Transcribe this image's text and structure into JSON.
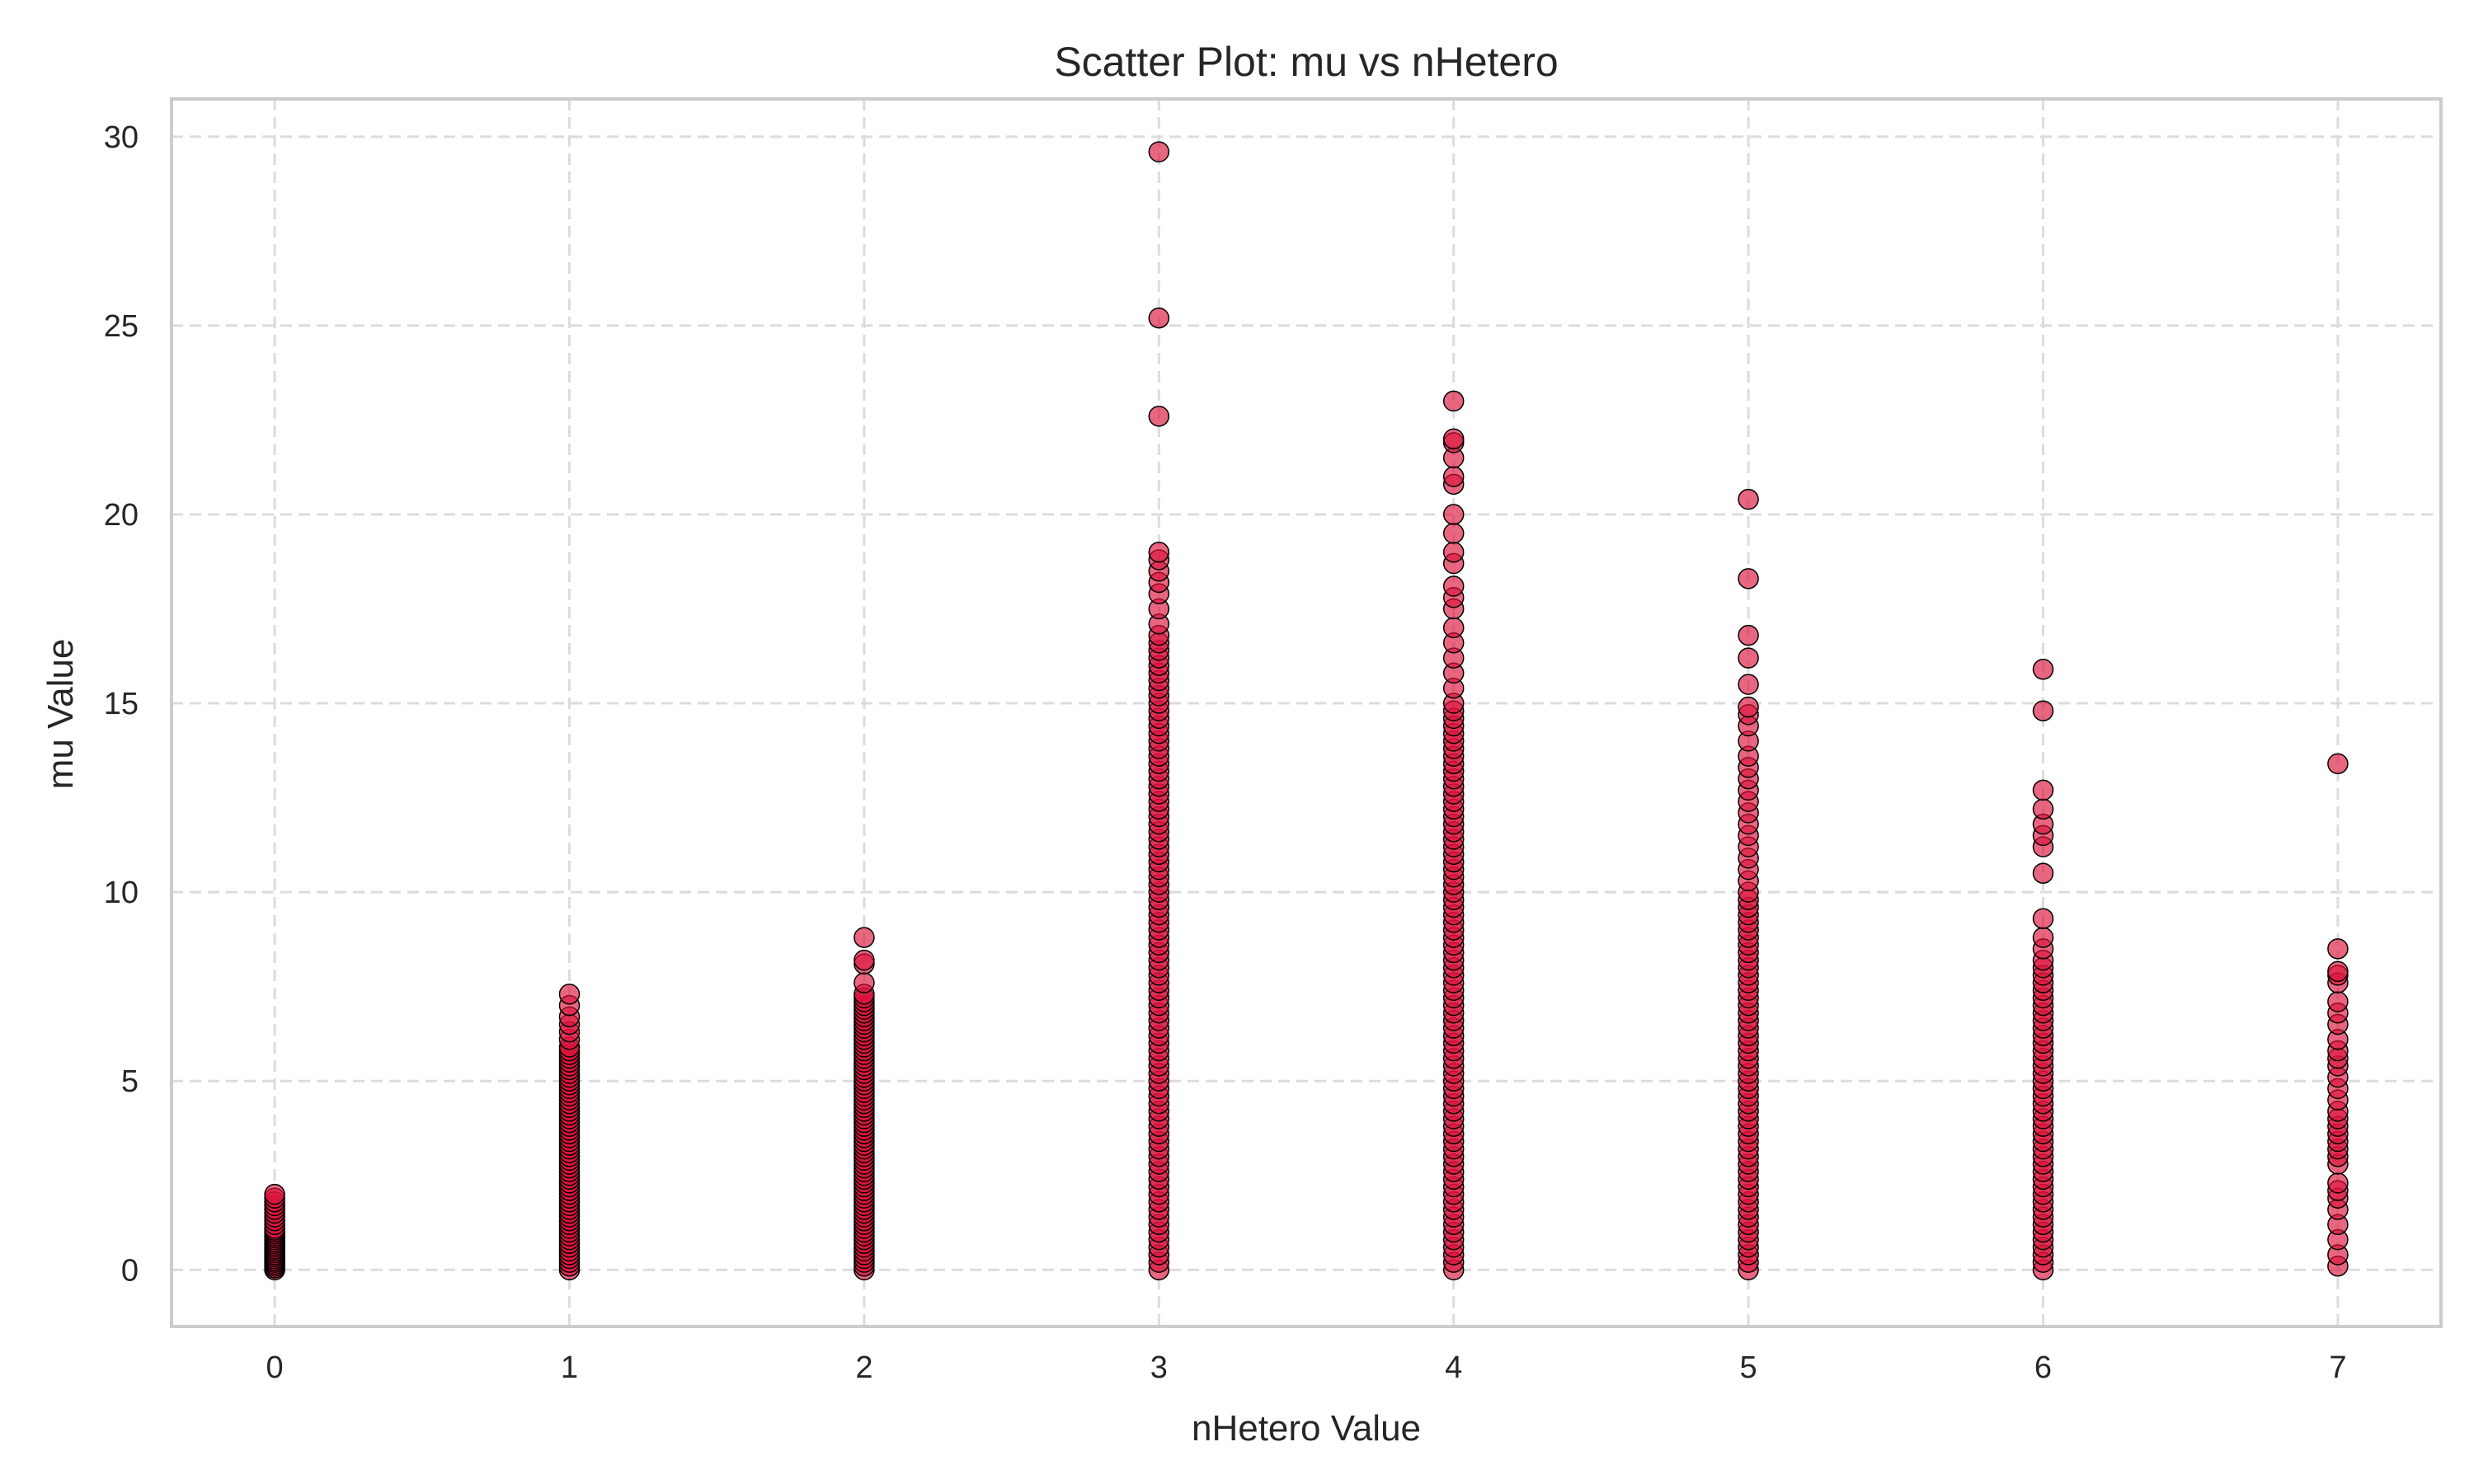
{
  "chart_data": {
    "type": "scatter",
    "title": "Scatter Plot: mu vs nHetero",
    "xlabel": "nHetero Value",
    "ylabel": "mu Value",
    "xlim": [
      -0.35,
      7.35
    ],
    "ylim": [
      -1.5,
      31.0
    ],
    "xticks": [
      0,
      1,
      2,
      3,
      4,
      5,
      6,
      7
    ],
    "yticks": [
      0,
      5,
      10,
      15,
      20,
      25,
      30
    ],
    "grid": true,
    "legend": "none",
    "marker_color": "#dc143c",
    "marker_edge_color": "#000000",
    "marker_alpha": 0.65,
    "series": [
      {
        "x": 0,
        "y": [
          0.0,
          0.05,
          0.1,
          0.15,
          0.2,
          0.25,
          0.3,
          0.35,
          0.4,
          0.45,
          0.5,
          0.55,
          0.6,
          0.65,
          0.7,
          0.75,
          0.8,
          0.85,
          0.9,
          0.95,
          1.0,
          1.05,
          1.1,
          1.2,
          1.3,
          1.4,
          1.5,
          1.6,
          1.7,
          1.8,
          1.9,
          2.0
        ]
      },
      {
        "x": 1,
        "y": [
          0.0,
          0.1,
          0.2,
          0.3,
          0.4,
          0.5,
          0.6,
          0.7,
          0.8,
          0.9,
          1.0,
          1.1,
          1.2,
          1.3,
          1.4,
          1.5,
          1.6,
          1.7,
          1.8,
          1.9,
          2.0,
          2.1,
          2.2,
          2.3,
          2.4,
          2.5,
          2.6,
          2.7,
          2.8,
          2.9,
          3.0,
          3.1,
          3.2,
          3.3,
          3.4,
          3.5,
          3.6,
          3.7,
          3.8,
          3.9,
          4.0,
          4.1,
          4.2,
          4.3,
          4.4,
          4.5,
          4.6,
          4.7,
          4.8,
          4.9,
          5.0,
          5.1,
          5.2,
          5.3,
          5.4,
          5.5,
          5.6,
          5.7,
          5.8,
          5.9,
          6.1,
          6.3,
          6.5,
          6.7,
          7.0,
          7.3
        ]
      },
      {
        "x": 2,
        "y": [
          0.0,
          0.1,
          0.2,
          0.3,
          0.4,
          0.5,
          0.6,
          0.7,
          0.8,
          0.9,
          1.0,
          1.1,
          1.2,
          1.3,
          1.4,
          1.5,
          1.6,
          1.7,
          1.8,
          1.9,
          2.0,
          2.1,
          2.2,
          2.3,
          2.4,
          2.5,
          2.6,
          2.7,
          2.8,
          2.9,
          3.0,
          3.1,
          3.2,
          3.3,
          3.4,
          3.5,
          3.6,
          3.7,
          3.8,
          3.9,
          4.0,
          4.1,
          4.2,
          4.3,
          4.4,
          4.5,
          4.6,
          4.7,
          4.8,
          4.9,
          5.0,
          5.1,
          5.2,
          5.3,
          5.4,
          5.5,
          5.6,
          5.7,
          5.8,
          5.9,
          6.0,
          6.1,
          6.2,
          6.3,
          6.4,
          6.5,
          6.6,
          6.7,
          6.8,
          6.9,
          7.0,
          7.1,
          7.2,
          7.3,
          7.6,
          8.1,
          8.2,
          8.8
        ]
      },
      {
        "x": 3,
        "y": [
          0.0,
          0.2,
          0.4,
          0.6,
          0.8,
          1.0,
          1.2,
          1.4,
          1.6,
          1.8,
          2.0,
          2.2,
          2.4,
          2.6,
          2.8,
          3.0,
          3.2,
          3.4,
          3.6,
          3.8,
          4.0,
          4.2,
          4.4,
          4.6,
          4.8,
          5.0,
          5.2,
          5.4,
          5.6,
          5.8,
          6.0,
          6.2,
          6.4,
          6.6,
          6.8,
          7.0,
          7.2,
          7.4,
          7.6,
          7.8,
          8.0,
          8.2,
          8.4,
          8.6,
          8.8,
          9.0,
          9.2,
          9.4,
          9.6,
          9.8,
          10.0,
          10.2,
          10.4,
          10.6,
          10.8,
          11.0,
          11.2,
          11.4,
          11.6,
          11.8,
          12.0,
          12.2,
          12.4,
          12.6,
          12.8,
          13.0,
          13.2,
          13.4,
          13.6,
          13.8,
          14.0,
          14.2,
          14.4,
          14.6,
          14.8,
          15.0,
          15.2,
          15.4,
          15.6,
          15.8,
          16.0,
          16.2,
          16.4,
          16.6,
          16.8,
          17.1,
          17.5,
          17.9,
          18.2,
          18.5,
          18.8,
          19.0,
          22.6,
          25.2,
          29.6
        ]
      },
      {
        "x": 4,
        "y": [
          0.0,
          0.2,
          0.4,
          0.6,
          0.8,
          1.0,
          1.2,
          1.4,
          1.6,
          1.8,
          2.0,
          2.2,
          2.4,
          2.6,
          2.8,
          3.0,
          3.2,
          3.4,
          3.6,
          3.8,
          4.0,
          4.2,
          4.4,
          4.6,
          4.8,
          5.0,
          5.2,
          5.4,
          5.6,
          5.8,
          6.0,
          6.2,
          6.4,
          6.6,
          6.8,
          7.0,
          7.2,
          7.4,
          7.6,
          7.8,
          8.0,
          8.2,
          8.4,
          8.6,
          8.8,
          9.0,
          9.2,
          9.4,
          9.6,
          9.8,
          10.0,
          10.2,
          10.4,
          10.6,
          10.8,
          11.0,
          11.2,
          11.4,
          11.6,
          11.8,
          12.0,
          12.2,
          12.4,
          12.6,
          12.8,
          13.0,
          13.2,
          13.4,
          13.6,
          13.8,
          14.0,
          14.2,
          14.4,
          14.6,
          14.8,
          15.0,
          15.4,
          15.8,
          16.2,
          16.6,
          17.0,
          17.5,
          17.8,
          18.1,
          18.7,
          19.0,
          19.5,
          20.0,
          20.8,
          21.0,
          21.5,
          21.9,
          22.0,
          23.0
        ]
      },
      {
        "x": 5,
        "y": [
          0.0,
          0.2,
          0.4,
          0.6,
          0.8,
          1.0,
          1.2,
          1.4,
          1.6,
          1.8,
          2.0,
          2.2,
          2.4,
          2.6,
          2.8,
          3.0,
          3.2,
          3.4,
          3.6,
          3.8,
          4.0,
          4.2,
          4.4,
          4.6,
          4.8,
          5.0,
          5.2,
          5.4,
          5.6,
          5.8,
          6.0,
          6.2,
          6.4,
          6.6,
          6.8,
          7.0,
          7.2,
          7.4,
          7.6,
          7.8,
          8.0,
          8.2,
          8.4,
          8.6,
          8.8,
          9.0,
          9.2,
          9.4,
          9.6,
          9.8,
          10.0,
          10.3,
          10.6,
          10.9,
          11.2,
          11.5,
          11.8,
          12.1,
          12.4,
          12.7,
          13.0,
          13.3,
          13.6,
          14.0,
          14.4,
          14.7,
          14.9,
          15.5,
          16.2,
          16.8,
          18.3,
          20.4
        ]
      },
      {
        "x": 6,
        "y": [
          0.0,
          0.2,
          0.4,
          0.6,
          0.8,
          1.0,
          1.2,
          1.4,
          1.6,
          1.8,
          2.0,
          2.2,
          2.4,
          2.6,
          2.8,
          3.0,
          3.2,
          3.4,
          3.6,
          3.8,
          4.0,
          4.2,
          4.4,
          4.6,
          4.8,
          5.0,
          5.2,
          5.4,
          5.6,
          5.8,
          6.0,
          6.2,
          6.4,
          6.6,
          6.8,
          7.0,
          7.2,
          7.4,
          7.6,
          7.8,
          8.0,
          8.2,
          8.5,
          8.8,
          9.3,
          10.5,
          11.2,
          11.5,
          11.8,
          12.2,
          12.7,
          14.8,
          15.9
        ]
      },
      {
        "x": 7,
        "y": [
          0.1,
          0.4,
          0.8,
          1.2,
          1.6,
          1.9,
          2.1,
          2.3,
          2.8,
          3.0,
          3.2,
          3.4,
          3.6,
          3.8,
          4.0,
          4.2,
          4.5,
          4.8,
          5.1,
          5.4,
          5.6,
          5.8,
          6.1,
          6.5,
          6.8,
          7.1,
          7.6,
          7.8,
          7.9,
          8.5,
          13.4
        ]
      }
    ]
  }
}
